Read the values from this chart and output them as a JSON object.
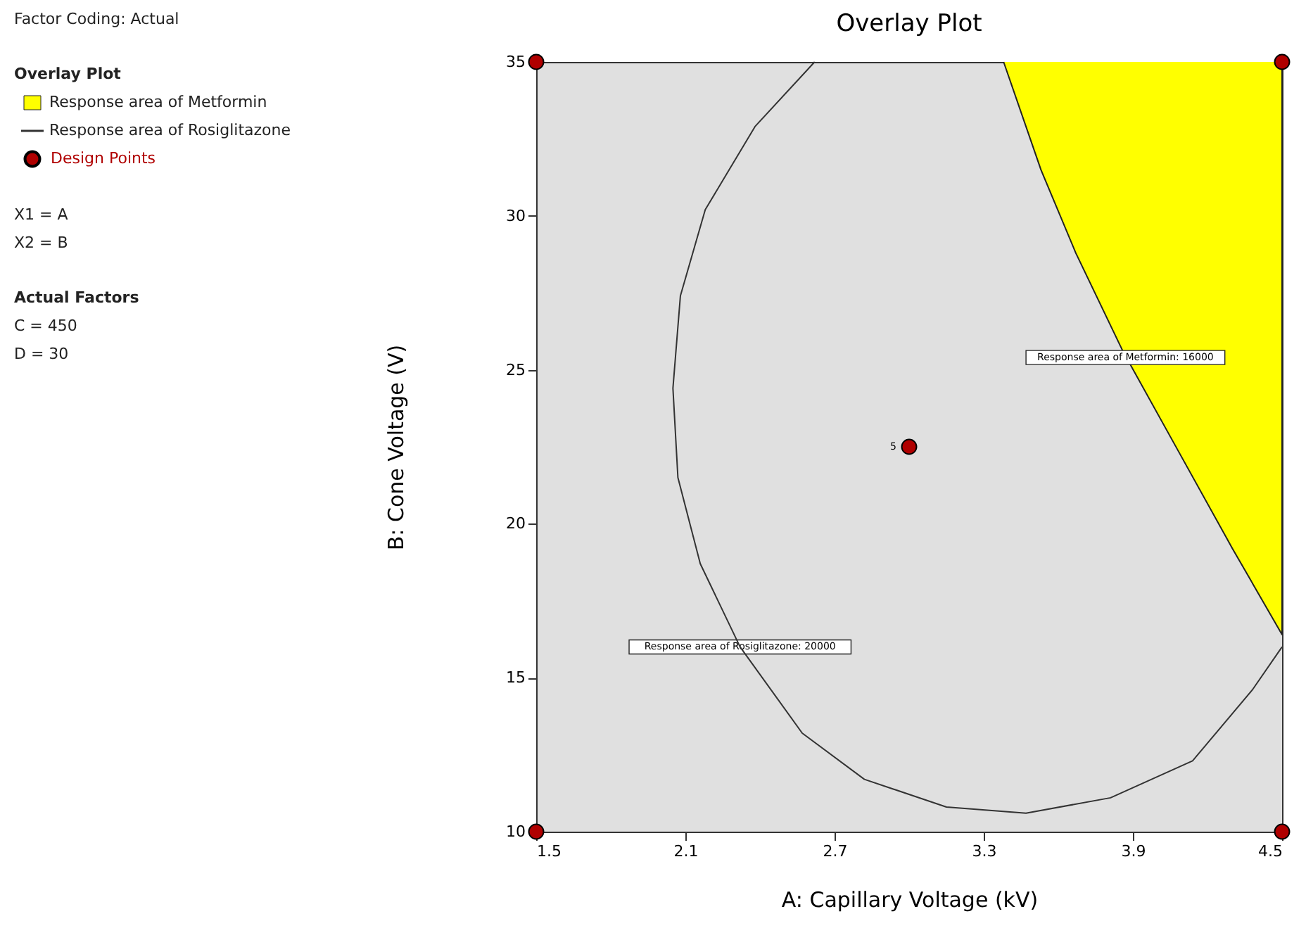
{
  "chart_data": {
    "type": "line",
    "title": "Overlay Plot",
    "xlabel": "A: Capillary Voltage (kV)",
    "ylabel": "B: Cone Voltage (V)",
    "legend_title": "Overlay Plot",
    "legend": "left",
    "grid": false,
    "xlim": [
      1.5,
      4.5
    ],
    "xticks": [
      1.5,
      2.1,
      2.7,
      3.3,
      3.9,
      4.5
    ],
    "ylim": [
      10,
      35
    ],
    "yticks": [
      10,
      15,
      20,
      25,
      30,
      35
    ],
    "series": [
      {
        "name": "Response area of Metformin",
        "type": "area",
        "color": "#ffff00",
        "x": [
          3.38,
          3.53,
          3.67,
          3.86,
          4.08,
          4.3,
          4.5,
          4.5
        ],
        "values": [
          35,
          31.5,
          28.8,
          25.6,
          22.4,
          19.2,
          16.4,
          35
        ]
      },
      {
        "name": "Response area of Rosiglitazone",
        "color": "#333333",
        "x": [
          2.62,
          2.38,
          2.18,
          2.08,
          2.05,
          2.07,
          2.16,
          2.32,
          2.57,
          2.82,
          3.15,
          3.47,
          3.81,
          4.14,
          4.38,
          4.5
        ],
        "values": [
          35,
          32.9,
          30.2,
          27.4,
          24.4,
          21.5,
          18.7,
          16.0,
          13.2,
          11.7,
          10.8,
          10.6,
          11.1,
          12.3,
          14.6,
          16.0
        ]
      },
      {
        "name": "Design Points",
        "type": "scatter",
        "color": "#b00000",
        "marker": "circle",
        "x": [
          1.5,
          4.5,
          3.0,
          1.5,
          4.5
        ],
        "values": [
          35,
          35,
          22.5,
          10,
          10
        ]
      }
    ],
    "annotations": [
      "Factor Coding: Actual",
      "X1 = A",
      "X2 = B",
      "Actual Factors",
      "C = 450",
      "D = 30",
      {
        "text": "5",
        "x": 3.0,
        "y": 22.5
      },
      {
        "text": "Response area of Metformin: 16000",
        "x": 3.87,
        "y": 25.4
      },
      {
        "text": "Response area of Rosiglitazone: 20000",
        "x": 2.32,
        "y": 16.0
      }
    ]
  }
}
